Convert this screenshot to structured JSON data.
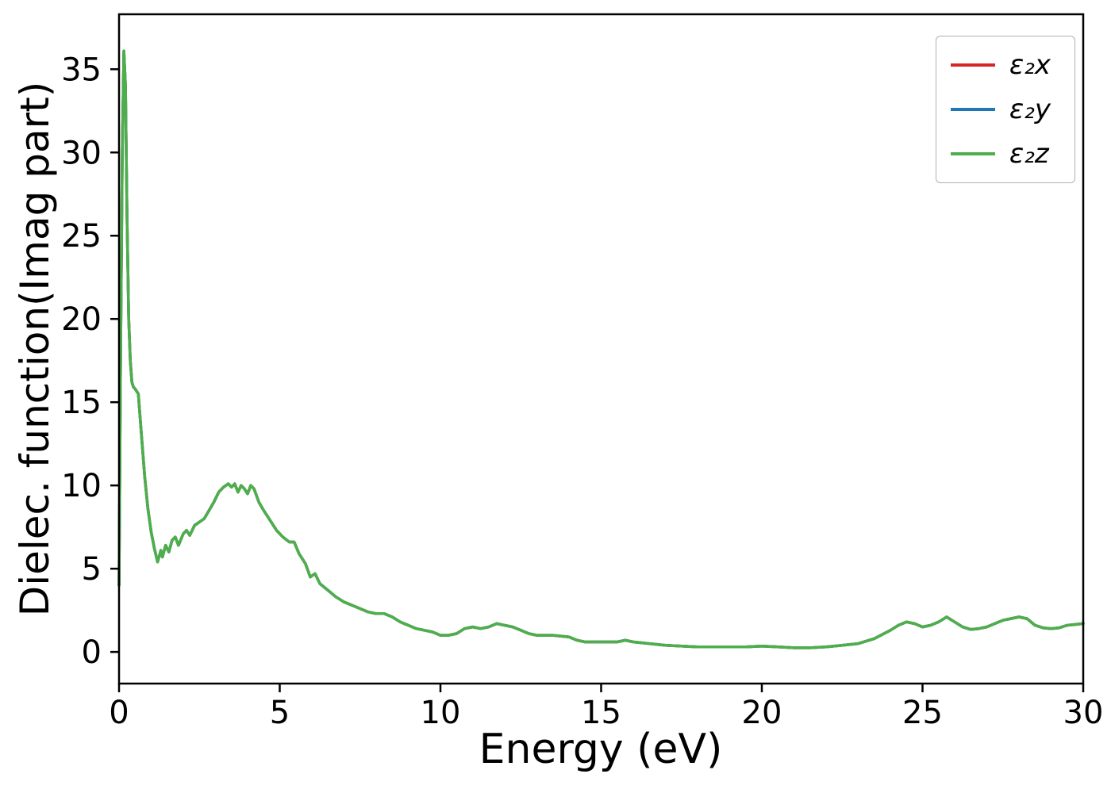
{
  "chart_data": {
    "type": "line",
    "title": "",
    "xlabel": "Energy (eV)",
    "ylabel": "Dielec. function(Imag part)",
    "xlim": [
      0,
      30
    ],
    "ylim": [
      -1.9,
      38.3
    ],
    "xticks": [
      0,
      5,
      10,
      15,
      20,
      25,
      30
    ],
    "yticks": [
      0,
      5,
      10,
      15,
      20,
      25,
      30,
      35
    ],
    "grid": false,
    "legend_position": "upper right",
    "note": "All three series (x, y, z components) overlap exactly; only the green ε₂z curve is visible on top.",
    "x": [
      0.0,
      0.05,
      0.1,
      0.15,
      0.2,
      0.25,
      0.3,
      0.35,
      0.4,
      0.45,
      0.5,
      0.6,
      0.7,
      0.8,
      0.9,
      1.0,
      1.1,
      1.2,
      1.3,
      1.35,
      1.45,
      1.55,
      1.65,
      1.75,
      1.85,
      2.0,
      2.1,
      2.2,
      2.35,
      2.5,
      2.65,
      2.8,
      2.95,
      3.1,
      3.25,
      3.4,
      3.5,
      3.6,
      3.7,
      3.8,
      3.9,
      4.0,
      4.1,
      4.2,
      4.35,
      4.5,
      4.7,
      4.9,
      5.1,
      5.3,
      5.45,
      5.6,
      5.8,
      5.95,
      6.1,
      6.25,
      6.5,
      6.75,
      7.0,
      7.25,
      7.5,
      7.75,
      8.0,
      8.25,
      8.5,
      8.75,
      9.0,
      9.25,
      9.5,
      9.75,
      10.0,
      10.25,
      10.5,
      10.75,
      11.0,
      11.25,
      11.5,
      11.75,
      12.0,
      12.25,
      12.5,
      12.75,
      13.0,
      13.5,
      14.0,
      14.25,
      14.5,
      15.0,
      15.5,
      15.75,
      16.0,
      16.5,
      17.0,
      17.5,
      18.0,
      18.5,
      19.0,
      19.5,
      20.0,
      20.5,
      21.0,
      21.5,
      22.0,
      22.5,
      23.0,
      23.5,
      24.0,
      24.25,
      24.5,
      24.75,
      25.0,
      25.25,
      25.5,
      25.75,
      26.0,
      26.25,
      26.5,
      26.75,
      27.0,
      27.25,
      27.5,
      27.75,
      28.0,
      28.25,
      28.5,
      28.75,
      29.0,
      29.25,
      29.5,
      29.75,
      30.0
    ],
    "values": [
      4.0,
      18.0,
      30.0,
      36.1,
      34.0,
      26.0,
      20.0,
      17.5,
      16.2,
      15.9,
      15.8,
      15.5,
      13.0,
      10.5,
      8.6,
      7.2,
      6.2,
      5.4,
      6.1,
      5.7,
      6.4,
      6.0,
      6.7,
      6.9,
      6.4,
      7.1,
      7.3,
      7.0,
      7.6,
      7.8,
      8.0,
      8.5,
      9.0,
      9.6,
      9.9,
      10.1,
      9.9,
      10.1,
      9.6,
      10.0,
      9.8,
      9.5,
      10.0,
      9.8,
      9.0,
      8.5,
      7.9,
      7.3,
      6.9,
      6.6,
      6.6,
      5.9,
      5.3,
      4.5,
      4.7,
      4.1,
      3.7,
      3.3,
      3.0,
      2.8,
      2.6,
      2.4,
      2.3,
      2.3,
      2.1,
      1.8,
      1.6,
      1.4,
      1.3,
      1.2,
      1.0,
      1.0,
      1.1,
      1.4,
      1.5,
      1.4,
      1.5,
      1.7,
      1.6,
      1.5,
      1.3,
      1.1,
      1.0,
      1.0,
      0.9,
      0.7,
      0.6,
      0.6,
      0.6,
      0.7,
      0.6,
      0.5,
      0.4,
      0.35,
      0.3,
      0.3,
      0.3,
      0.3,
      0.35,
      0.3,
      0.25,
      0.25,
      0.3,
      0.4,
      0.5,
      0.8,
      1.3,
      1.6,
      1.8,
      1.7,
      1.5,
      1.6,
      1.8,
      2.1,
      1.8,
      1.5,
      1.35,
      1.4,
      1.5,
      1.7,
      1.9,
      2.0,
      2.1,
      2.0,
      1.6,
      1.45,
      1.4,
      1.45,
      1.6,
      1.65,
      1.7
    ],
    "series": [
      {
        "name": "ε₂x",
        "color": "#d62728"
      },
      {
        "name": "ε₂y",
        "color": "#1f77b4"
      },
      {
        "name": "ε₂z",
        "color": "#4daf4a"
      }
    ],
    "axis_color": "#000000",
    "background_color": "#ffffff"
  }
}
